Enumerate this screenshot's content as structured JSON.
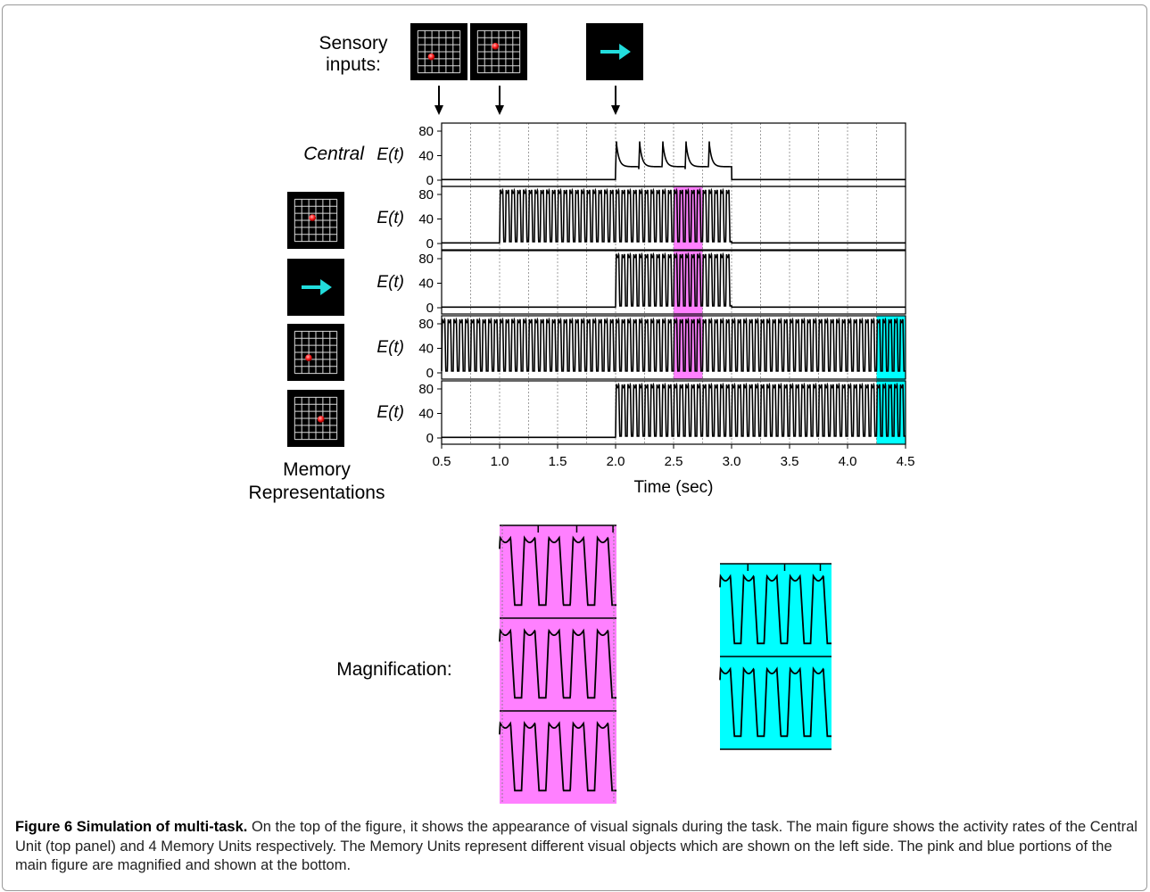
{
  "figure": {
    "sensory_label": [
      "Sensory",
      "inputs:"
    ],
    "central_label": "Central",
    "memory_label": [
      "Memory",
      "Representations"
    ],
    "magnification_label": "Magnification:",
    "ylabel": "E(t)",
    "xlabel": "Time (sec)"
  },
  "chart_data": {
    "type": "line",
    "xlabel": "Time (sec)",
    "ylabel": "E(t)",
    "xlim": [
      0.5,
      4.5
    ],
    "ylim": [
      0,
      90
    ],
    "x_ticks": [
      "0.5",
      "1.0",
      "1.5",
      "2.0",
      "2.5",
      "3.0",
      "3.5",
      "4.0",
      "4.5"
    ],
    "y_ticks": [
      "0",
      "40",
      "80"
    ],
    "sensory_inputs": [
      {
        "time": 0.5,
        "stimulus": "red dot in grid"
      },
      {
        "time": 1.0,
        "stimulus": "red dot in grid"
      },
      {
        "time": 2.0,
        "stimulus": "cyan arrow"
      }
    ],
    "highlight_regions": [
      {
        "color": "#ff80ff",
        "x": [
          2.5,
          2.75
        ],
        "panels": [
          2,
          3,
          4
        ]
      },
      {
        "color": "#00ffff",
        "x": [
          4.25,
          4.5
        ],
        "panels": [
          4,
          5
        ]
      }
    ],
    "series": [
      {
        "panel": 1,
        "label": "Central",
        "active": [
          2.0,
          3.0
        ],
        "frequency_hz": 5,
        "peak": 65,
        "trough": 18
      },
      {
        "panel": 2,
        "active": [
          1.0,
          3.0
        ],
        "frequency_hz": 20,
        "peak": 88,
        "trough": 3
      },
      {
        "panel": 3,
        "active": [
          2.0,
          3.0
        ],
        "frequency_hz": 20,
        "peak": 88,
        "trough": 3
      },
      {
        "panel": 4,
        "active": [
          0.5,
          4.5
        ],
        "frequency_hz": 20,
        "peak": 88,
        "trough": 3
      },
      {
        "panel": 5,
        "active": [
          2.0,
          4.5
        ],
        "frequency_hz": 20,
        "peak": 88,
        "trough": 3
      }
    ]
  },
  "caption": {
    "title": "Figure 6 Simulation of multi-task.",
    "text": "On the top of the figure, it shows the appearance of visual signals during the task. The main figure shows the activity rates of the Central Unit (top panel) and 4 Memory Units respectively. The Memory Units represent different visual objects which are shown on the left side. The pink and blue portions of the main figure are magnified and shown at the bottom."
  },
  "colors": {
    "pink": "#ff80ff",
    "cyan": "#00ffff",
    "stimulus_bg": "#000000",
    "dot": "#ff2a2a",
    "arrow": "#22dddd"
  }
}
